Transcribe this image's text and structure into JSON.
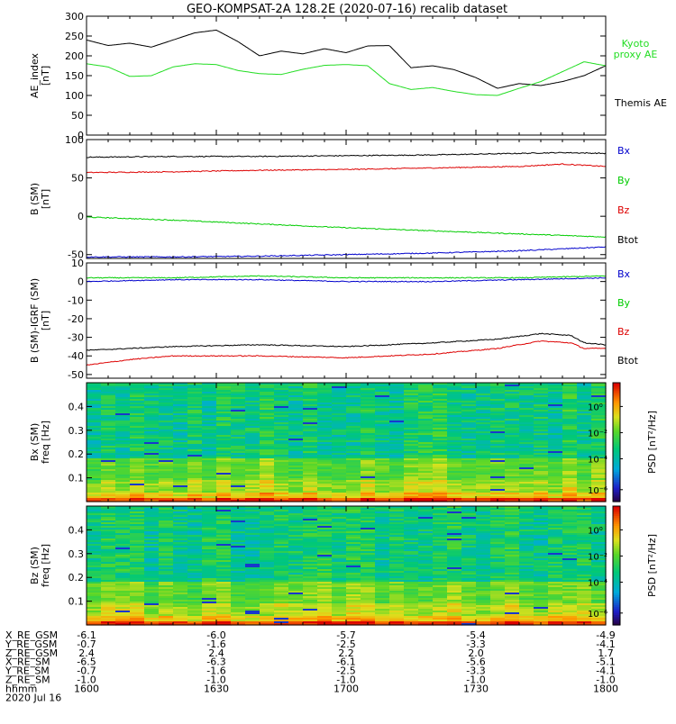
{
  "title": "GEO-KOMPSAT-2A 128.2E (2020-07-16) recalib dataset",
  "colors": {
    "black": "#000000",
    "green": "#00cc00",
    "red": "#dd0000",
    "blue": "#0000cc",
    "kyoto": "#22dd22"
  },
  "chart_data": [
    {
      "type": "line",
      "id": "ae",
      "ylabel": "AE_index [nT]",
      "ylim": [
        0,
        300
      ],
      "yticks": [
        0,
        50,
        100,
        150,
        200,
        250,
        300
      ],
      "xlim": [
        0,
        120
      ],
      "legend": [
        {
          "name": "Kyoto proxy AE",
          "lines": [
            "Kyoto",
            "proxy AE"
          ],
          "color": "#22dd22"
        },
        {
          "name": "Themis AE",
          "lines": [
            "Themis AE"
          ],
          "color": "#000000"
        }
      ],
      "series": [
        {
          "name": "Themis AE",
          "color": "#000000",
          "x": [
            0,
            5,
            10,
            15,
            20,
            25,
            30,
            35,
            40,
            45,
            50,
            55,
            60,
            65,
            70,
            75,
            80,
            85,
            90,
            95,
            100,
            105,
            110,
            115,
            120
          ],
          "y": [
            240,
            226,
            232,
            222,
            240,
            258,
            265,
            236,
            200,
            212,
            205,
            218,
            208,
            225,
            226,
            170,
            175,
            165,
            145,
            118,
            130,
            125,
            135,
            150,
            175
          ]
        },
        {
          "name": "Kyoto proxy AE",
          "color": "#22dd22",
          "x": [
            0,
            5,
            10,
            15,
            20,
            25,
            30,
            35,
            40,
            45,
            50,
            55,
            60,
            65,
            70,
            75,
            80,
            85,
            90,
            95,
            100,
            105,
            110,
            115,
            120
          ],
          "y": [
            180,
            172,
            148,
            150,
            172,
            180,
            178,
            163,
            155,
            153,
            166,
            176,
            178,
            175,
            130,
            115,
            120,
            110,
            102,
            100,
            118,
            135,
            160,
            185,
            175
          ]
        }
      ]
    },
    {
      "type": "line",
      "id": "bsm",
      "ylabel": "B (SM) [nT]",
      "ylim": [
        -55,
        100
      ],
      "yticks": [
        -50,
        0,
        50,
        100
      ],
      "xlim": [
        0,
        120
      ],
      "legend": [
        {
          "name": "Bx",
          "lines": [
            "Bx"
          ],
          "color": "#0000cc"
        },
        {
          "name": "By",
          "lines": [
            "By"
          ],
          "color": "#00cc00"
        },
        {
          "name": "Bz",
          "lines": [
            "Bz"
          ],
          "color": "#dd0000"
        },
        {
          "name": "Btot",
          "lines": [
            "Btot"
          ],
          "color": "#000000"
        }
      ],
      "series": [
        {
          "name": "Btot",
          "color": "#000000",
          "x": [
            0,
            20,
            40,
            60,
            80,
            100,
            110,
            120
          ],
          "y": [
            77,
            78,
            78,
            79,
            80,
            82,
            83,
            82
          ]
        },
        {
          "name": "Bz",
          "color": "#dd0000",
          "x": [
            0,
            20,
            40,
            60,
            80,
            100,
            110,
            120
          ],
          "y": [
            57,
            58,
            60,
            61,
            63,
            65,
            68,
            65
          ]
        },
        {
          "name": "By",
          "color": "#00cc00",
          "x": [
            0,
            20,
            40,
            60,
            80,
            100,
            120
          ],
          "y": [
            -1,
            -5,
            -10,
            -15,
            -19,
            -23,
            -27
          ]
        },
        {
          "name": "Bx",
          "color": "#0000cc",
          "x": [
            0,
            20,
            40,
            60,
            80,
            100,
            120
          ],
          "y": [
            -53,
            -53,
            -52,
            -50,
            -48,
            -45,
            -40
          ]
        }
      ]
    },
    {
      "type": "line",
      "id": "bigrf",
      "ylabel": "B (SM)-IGRF (SM) [nT]",
      "ylim": [
        -52,
        10
      ],
      "yticks": [
        -50,
        -40,
        -30,
        -20,
        -10,
        0,
        10
      ],
      "xlim": [
        0,
        120
      ],
      "legend": [
        {
          "name": "Bx",
          "lines": [
            "Bx"
          ],
          "color": "#0000cc"
        },
        {
          "name": "By",
          "lines": [
            "By"
          ],
          "color": "#00cc00"
        },
        {
          "name": "Bz",
          "lines": [
            "Bz"
          ],
          "color": "#dd0000"
        },
        {
          "name": "Btot",
          "lines": [
            "Btot"
          ],
          "color": "#000000"
        }
      ],
      "series": [
        {
          "name": "By",
          "color": "#00cc00",
          "x": [
            0,
            20,
            40,
            60,
            80,
            100,
            120
          ],
          "y": [
            2,
            2,
            3,
            2,
            2,
            2,
            3
          ]
        },
        {
          "name": "Bx",
          "color": "#0000cc",
          "x": [
            0,
            20,
            40,
            60,
            80,
            100,
            120
          ],
          "y": [
            0,
            1,
            1,
            0,
            0,
            1,
            2
          ]
        },
        {
          "name": "Btot",
          "color": "#000000",
          "x": [
            0,
            10,
            20,
            40,
            60,
            80,
            95,
            105,
            112,
            115,
            120
          ],
          "y": [
            -37,
            -36,
            -35,
            -34,
            -35,
            -33,
            -31,
            -28,
            -29,
            -33,
            -34
          ]
        },
        {
          "name": "Bz",
          "color": "#dd0000",
          "x": [
            0,
            10,
            20,
            40,
            60,
            80,
            95,
            105,
            112,
            115,
            120
          ],
          "y": [
            -45,
            -42,
            -40,
            -40,
            -41,
            -39,
            -36,
            -32,
            -33,
            -36,
            -36
          ]
        }
      ]
    },
    {
      "type": "heatmap",
      "id": "bxpsd",
      "ylabel": "Bx (SM) freq [Hz]",
      "ylim": [
        0,
        0.5
      ],
      "yticks": [
        0.1,
        0.2,
        0.3,
        0.4
      ],
      "xlim": [
        0,
        120
      ],
      "colorbar": {
        "label": "PSD [nT²/Hz]",
        "ticks": [
          "10⁰",
          "10⁻²",
          "10⁻⁴",
          "10⁻⁶"
        ]
      }
    },
    {
      "type": "heatmap",
      "id": "bzpsd",
      "ylabel": "Bz (SM) freq [Hz]",
      "ylim": [
        0,
        0.5
      ],
      "yticks": [
        0.1,
        0.2,
        0.3,
        0.4
      ],
      "xlim": [
        0,
        120
      ],
      "colorbar": {
        "label": "PSD [nT²/Hz]",
        "ticks": [
          "10⁰",
          "10⁻²",
          "10⁻⁴",
          "10⁻⁶"
        ]
      }
    }
  ],
  "ephemeris": {
    "labels": [
      "X_RE_GSM",
      "Y_RE_GSM",
      "Z_RE_GSM",
      "X_RE_SM",
      "Y_RE_SM",
      "Z_RE_SM",
      "hhmm",
      "2020 Jul 16"
    ],
    "columns": [
      {
        "x": 0,
        "values": [
          "-6.1",
          "-0.7",
          "2.4",
          "-6.5",
          "-0.7",
          "-1.0",
          "1600"
        ]
      },
      {
        "x": 30,
        "values": [
          "-6.0",
          "-1.6",
          "2.4",
          "-6.3",
          "-1.6",
          "-1.0",
          "1630"
        ]
      },
      {
        "x": 60,
        "values": [
          "-5.7",
          "-2.5",
          "2.2",
          "-6.1",
          "-2.5",
          "-1.0",
          "1700"
        ]
      },
      {
        "x": 90,
        "values": [
          "-5.4",
          "-3.3",
          "2.0",
          "-5.6",
          "-3.3",
          "-1.0",
          "1730"
        ]
      },
      {
        "x": 120,
        "values": [
          "-4.9",
          "-4.1",
          "1.7",
          "-5.1",
          "-4.1",
          "-1.0",
          "1800"
        ]
      }
    ]
  }
}
